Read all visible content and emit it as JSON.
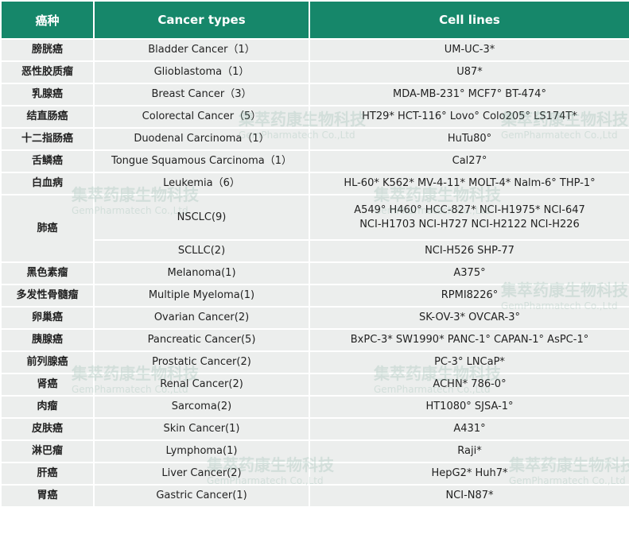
{
  "table": {
    "header": [
      "癌种",
      "Cancer types",
      "Cell lines"
    ],
    "rows": [
      {
        "zh": "膀胱癌",
        "en": "Bladder Cancer（1）",
        "lines": [
          "UM-UC-3*"
        ]
      },
      {
        "zh": "恶性胶质瘤",
        "en": "Glioblastoma（1）",
        "lines": [
          "U87*"
        ]
      },
      {
        "zh": "乳腺癌",
        "en": "Breast Cancer（3）",
        "lines": [
          "MDA-MB-231°  MCF7°  BT-474°"
        ]
      },
      {
        "zh": "结直肠癌",
        "en": "Colorectal Cancer（5）",
        "lines": [
          "HT29*  HCT-116°  Lovo°  Colo205°  LS174T*"
        ]
      },
      {
        "zh": "十二指肠癌",
        "en": "Duodenal Carcinoma（1）",
        "lines": [
          "HuTu80°"
        ]
      },
      {
        "zh": "舌鳞癌",
        "en": "Tongue Squamous Carcinoma（1）",
        "lines": [
          "Cal27°"
        ]
      },
      {
        "zh": "白血病",
        "en": "Leukemia（6）",
        "lines": [
          "HL-60*  K562*  MV-4-11*  MOLT-4*  Nalm-6°  THP-1°"
        ]
      },
      {
        "zh": "肺癌",
        "en": "NSCLC(9)",
        "lines": [
          "A549°  H460°  HCC-827*  NCI-H1975*  NCI-647",
          "NCI-H1703  NCI-H727  NCI-H2122  NCI-H226"
        ]
      },
      {
        "en": "SCLLC(2)",
        "lines": [
          "NCI-H526  SHP-77"
        ]
      },
      {
        "zh": "黑色素瘤",
        "en": "Melanoma(1)",
        "lines": [
          "A375°"
        ]
      },
      {
        "zh": "多发性骨髓瘤",
        "en": "Multiple Myeloma(1)",
        "lines": [
          "RPMI8226°"
        ]
      },
      {
        "zh": "卵巢癌",
        "en": "Ovarian Cancer(2)",
        "lines": [
          "SK-OV-3*  OVCAR-3°"
        ]
      },
      {
        "zh": "胰腺癌",
        "en": "Pancreatic Cancer(5)",
        "lines": [
          "BxPC-3*  SW1990*  PANC-1°  CAPAN-1°  AsPC-1°"
        ]
      },
      {
        "zh": "前列腺癌",
        "en": "Prostatic Cancer(2)",
        "lines": [
          "PC-3°  LNCaP*"
        ]
      },
      {
        "zh": "肾癌",
        "en": "Renal Cancer(2)",
        "lines": [
          "ACHN*  786-0°"
        ]
      },
      {
        "zh": "肉瘤",
        "en": "Sarcoma(2)",
        "lines": [
          "HT1080°  SJSA-1°"
        ]
      },
      {
        "zh": "皮肤癌",
        "en": "Skin Cancer(1)",
        "lines": [
          "A431°"
        ]
      },
      {
        "zh": "淋巴瘤",
        "en": "Lymphoma(1)",
        "lines": [
          "Raji*"
        ]
      },
      {
        "zh": "肝癌",
        "en": "Liver Cancer(2)",
        "lines": [
          "HepG2*  Huh7*"
        ]
      },
      {
        "zh": "胃癌",
        "en": "Gastric Cancer(1)",
        "lines": [
          "NCI-N87*"
        ]
      }
    ]
  },
  "watermark": {
    "name": "集萃药康生物科技",
    "sub": "GemPharmatech Co.,Ltd"
  }
}
